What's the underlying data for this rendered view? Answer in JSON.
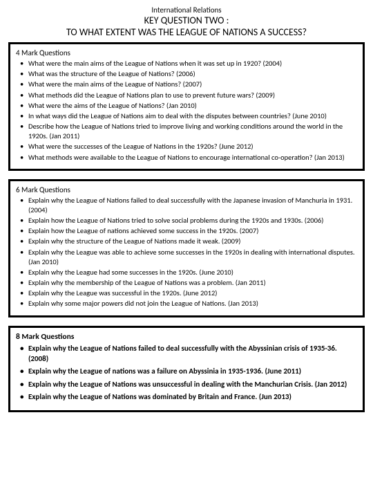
{
  "header": {
    "subject": "International Relations",
    "key_question": "KEY QUESTION TWO :",
    "title": "TO WHAT EXTENT WAS THE LEAGUE OF NATIONS A SUCCESS?"
  },
  "sections": [
    {
      "heading": "4 Mark Questions",
      "bold": false,
      "items": [
        "What were the main aims of the League of Nations when it was set up in 1920? (2004)",
        "What was the structure of the League of Nations? (2006)",
        "What were the main aims of the League of Nations? (2007)",
        "What methods did the League of Nations plan to use to prevent future wars? (2009)",
        "What were the aims of the League of Nations? (Jan 2010)",
        "In what ways did the League of Nations aim to deal with the disputes between countries? (June 2010)",
        "Describe how the League of Nations tried to improve living and working conditions around the world in the 1920s. (Jan 2011)",
        "What were the successes of the League of Nations in the 1920s? (June 2012)",
        "What methods were available to the League of Nations to encourage international co-operation? (Jan 2013)"
      ]
    },
    {
      "heading": "6 Mark Questions",
      "bold": false,
      "items": [
        "Explain why the League of Nations failed to deal successfully with the Japanese invasion of Manchuria in 1931. (2004)",
        "Explain how the League of Nations tried to solve social problems during the 1920s and 1930s. (2006)",
        "Explain how the League of nations achieved some success in the 1920s. (2007)",
        "Explain why the structure of the League of Nations made it weak. (2009)",
        "Explain why the League was able to achieve some successes  in the 1920s in dealing with international disputes. (Jan 2010)",
        "Explain why the League had some successes in the 1920s. (June 2010)",
        "Explain why the membership of the League of Nations was a problem. (Jan 2011)",
        "Explain why the League was successful in the 1920s. (June 2012)",
        "Explain why some major powers did not join the League of Nations. (Jan 2013)"
      ]
    },
    {
      "heading": "8 Mark Questions",
      "bold": true,
      "items": [
        "Explain why the League of Nations failed to deal successfully with the Abyssinian crisis of 1935-36. (2008)",
        "Explain why the League of nations was a failure on Abyssinia in 1935-1936. (June 2011)",
        "Explain why the League of Nations was unsuccessful in dealing with the Manchurian Crisis. (Jan 2012)",
        "Explain why the  League of Nations was dominated by Britain and France. (Jun 2013)"
      ]
    }
  ]
}
